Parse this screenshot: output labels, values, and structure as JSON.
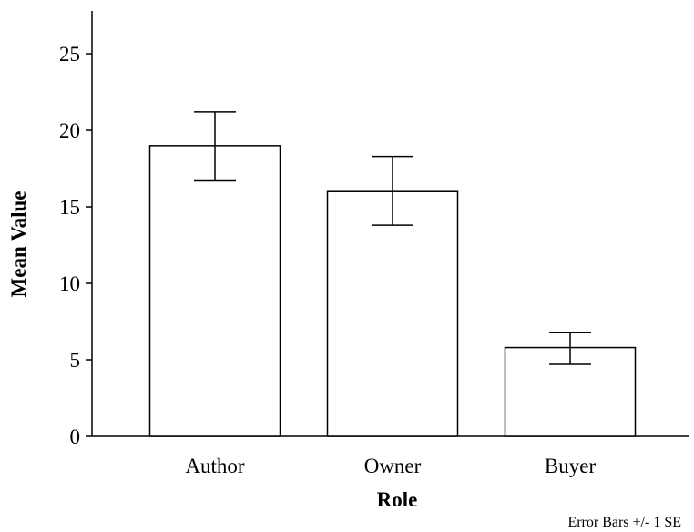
{
  "chart_data": {
    "type": "bar",
    "categories": [
      "Author",
      "Owner",
      "Buyer"
    ],
    "values": [
      19.0,
      16.0,
      5.8
    ],
    "error_bars": {
      "lower": [
        16.7,
        13.8,
        4.7
      ],
      "upper": [
        21.2,
        18.3,
        6.8
      ]
    },
    "title": "",
    "xlabel": "Role",
    "ylabel": "Mean Value",
    "yticks": [
      0,
      5,
      10,
      15,
      20,
      25
    ],
    "ylim": [
      0,
      27.8
    ],
    "grid": false,
    "legend": "none",
    "note": "Error Bars +/- 1 SE",
    "colors": {
      "bar_fill": "#ffffff",
      "stroke": "#000000"
    }
  }
}
